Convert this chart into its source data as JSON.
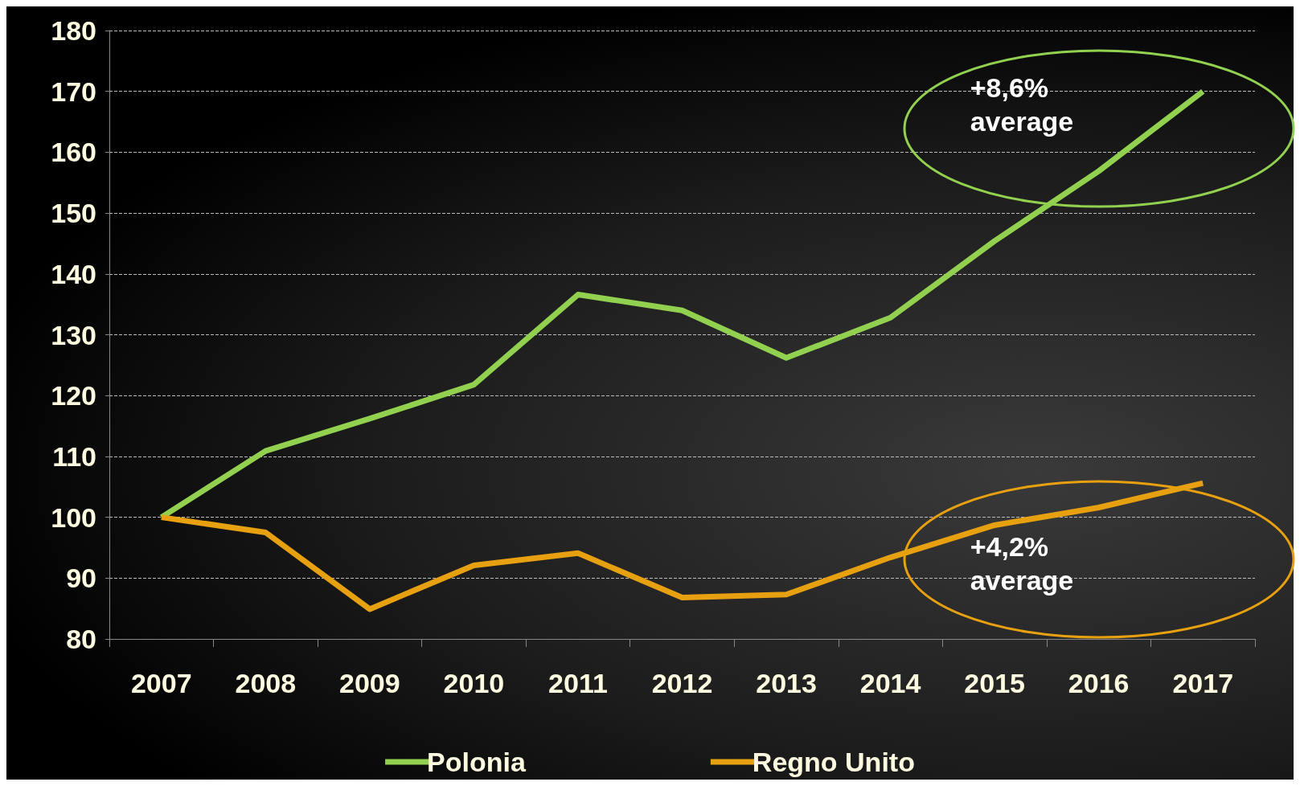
{
  "chart_data": {
    "type": "line",
    "categories": [
      "2007",
      "2008",
      "2009",
      "2010",
      "2011",
      "2012",
      "2013",
      "2014",
      "2015",
      "2016",
      "2017"
    ],
    "series": [
      {
        "name": "Polonia",
        "color": "#92d050",
        "values": [
          100,
          110.9,
          116.2,
          121.8,
          136.6,
          134,
          126.2,
          132.8,
          145.4,
          156.9,
          170
        ]
      },
      {
        "name": "Regno Unito",
        "color": "#e6a010",
        "values": [
          100,
          97.5,
          84.9,
          92.1,
          94.1,
          86.8,
          87.3,
          93.4,
          98.7,
          101.6,
          105.6
        ]
      }
    ],
    "ylim": [
      80,
      180
    ],
    "yticks": [
      80,
      90,
      100,
      110,
      120,
      130,
      140,
      150,
      160,
      170,
      180
    ],
    "grid": "y",
    "legend": "bottom",
    "marker": "none",
    "line_style": "solid",
    "annotations": [
      "+8,6%\naverage",
      "+4,2%\naverage"
    ]
  }
}
